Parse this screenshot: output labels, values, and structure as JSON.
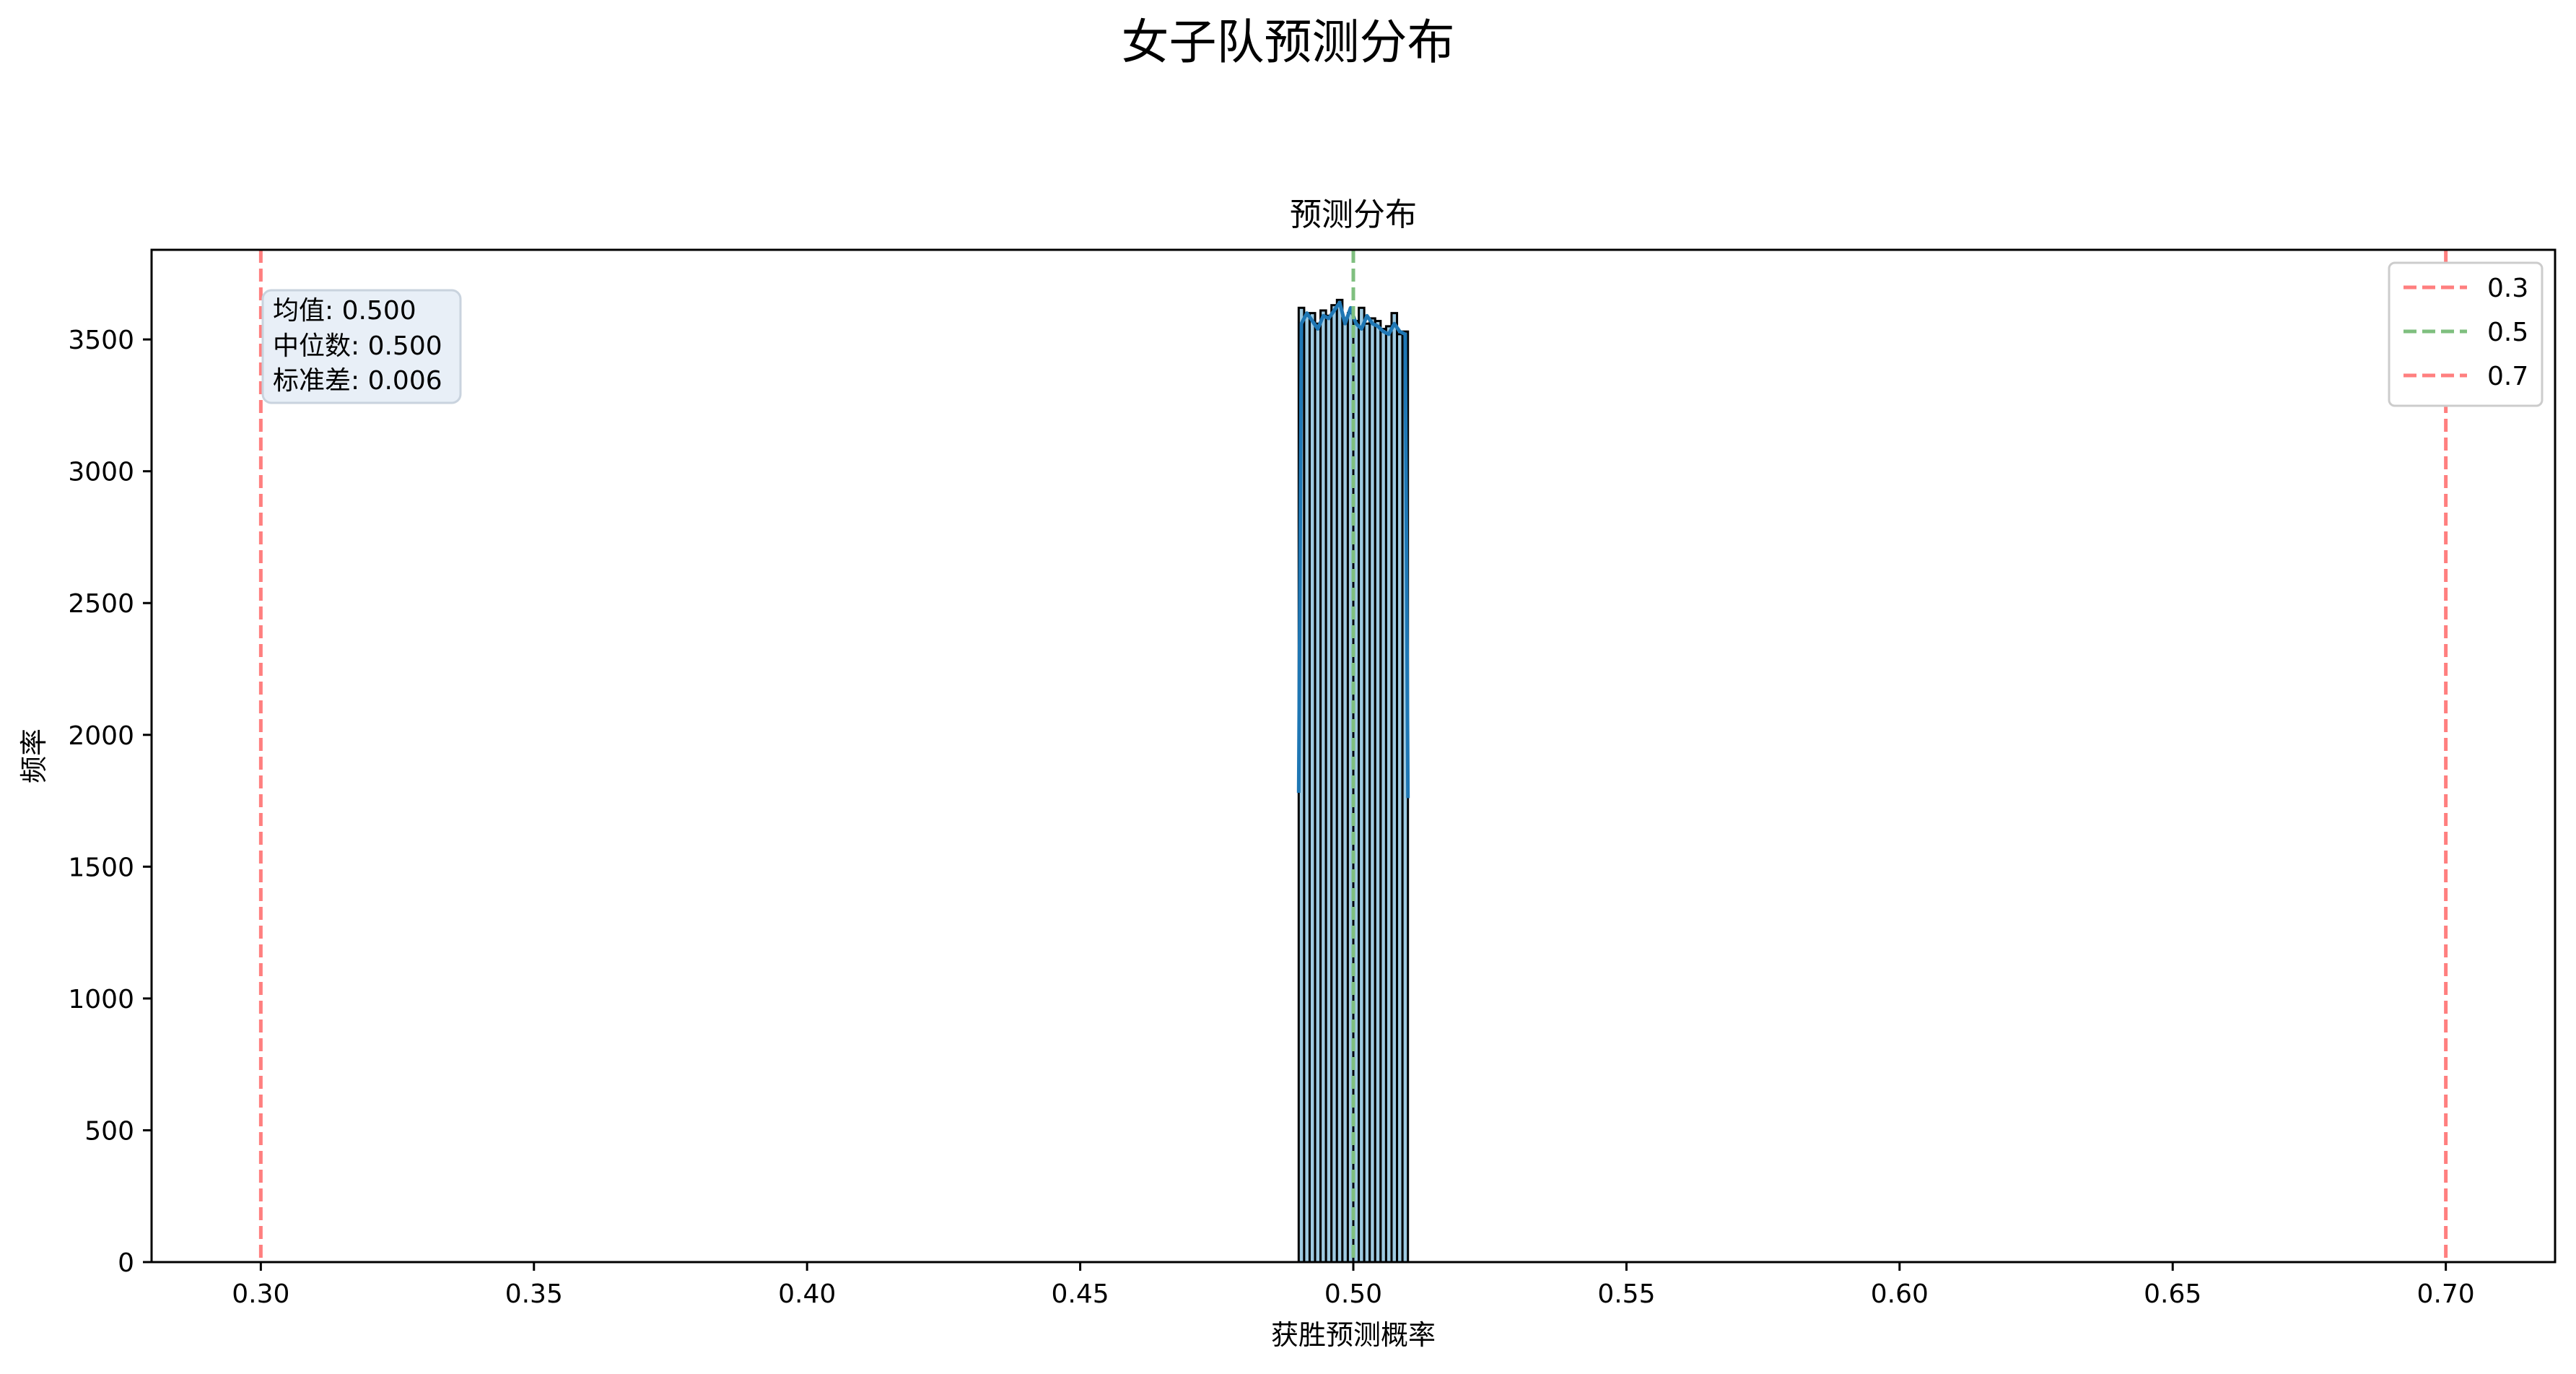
{
  "figure": {
    "suptitle": "女子队预测分布"
  },
  "chart_data": {
    "type": "bar",
    "title": "预测分布",
    "xlabel": "获胜预测概率",
    "ylabel": "频率",
    "xlim": [
      0.28,
      0.72
    ],
    "ylim": [
      0,
      3840
    ],
    "xticks": [
      "0.30",
      "0.35",
      "0.40",
      "0.45",
      "0.50",
      "0.55",
      "0.60",
      "0.65",
      "0.70"
    ],
    "yticks": [
      "0",
      "500",
      "1000",
      "1500",
      "2000",
      "2500",
      "3000",
      "3500"
    ],
    "grid": false,
    "histogram": {
      "bin_start": 0.49,
      "bin_end": 0.51,
      "bin_count": 20,
      "counts": [
        3620,
        3590,
        3600,
        3560,
        3610,
        3590,
        3630,
        3650,
        3580,
        3600,
        3570,
        3620,
        3560,
        3580,
        3570,
        3540,
        3550,
        3600,
        3520,
        3530
      ],
      "bar_color": "#9ecae1",
      "edge_color": "#000000"
    },
    "kde_line": {
      "color": "#1f77b4",
      "x": [
        0.49,
        0.4905,
        0.4915,
        0.4925,
        0.4935,
        0.4945,
        0.4955,
        0.4965,
        0.4975,
        0.4985,
        0.4995,
        0.5005,
        0.5015,
        0.5025,
        0.5035,
        0.5045,
        0.5055,
        0.5065,
        0.5075,
        0.5085,
        0.5095,
        0.51
      ],
      "y": [
        1780,
        3560,
        3600,
        3570,
        3540,
        3590,
        3580,
        3610,
        3640,
        3560,
        3620,
        3560,
        3540,
        3590,
        3560,
        3550,
        3530,
        3520,
        3560,
        3530,
        3520,
        1760
      ]
    },
    "reference_lines": [
      {
        "label": "0.3",
        "x": 0.3,
        "color": "#ff7f7f"
      },
      {
        "label": "0.5",
        "x": 0.5,
        "color": "#7fbf7f"
      },
      {
        "label": "0.7",
        "x": 0.7,
        "color": "#ff7f7f"
      }
    ],
    "legend_position": "top-right",
    "stats_box": {
      "mean": "均值: 0.500",
      "median": "中位数: 0.500",
      "std": "标准差: 0.006"
    }
  }
}
